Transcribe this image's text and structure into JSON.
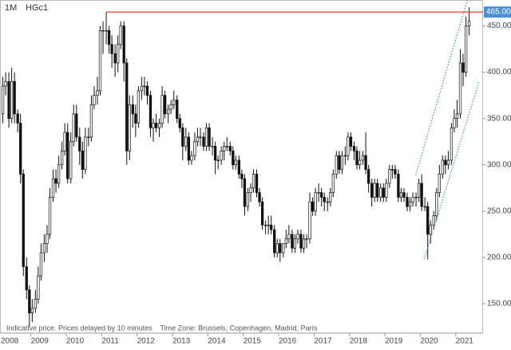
{
  "chart_data": {
    "type": "candlestick",
    "timeframe": "1M",
    "symbol": "HGc1",
    "note": "Indicative price. Prices delayed by 10 minutes    Time Zone: Brussels, Copenhagen, Madrid, Paris",
    "x": [
      2008.21,
      2008.29,
      2008.38,
      2008.46,
      2008.54,
      2008.63,
      2008.71,
      2008.79,
      2008.88,
      2008.96,
      2009.04,
      2009.13,
      2009.21,
      2009.29,
      2009.38,
      2009.46,
      2009.54,
      2009.63,
      2009.71,
      2009.79,
      2009.88,
      2009.96,
      2010.04,
      2010.13,
      2010.21,
      2010.29,
      2010.38,
      2010.46,
      2010.54,
      2010.63,
      2010.71,
      2010.79,
      2010.88,
      2010.96,
      2011.04,
      2011.13,
      2011.21,
      2011.29,
      2011.38,
      2011.46,
      2011.54,
      2011.63,
      2011.71,
      2011.79,
      2011.88,
      2011.96,
      2012.04,
      2012.13,
      2012.21,
      2012.29,
      2012.38,
      2012.46,
      2012.54,
      2012.63,
      2012.71,
      2012.79,
      2012.88,
      2012.96,
      2013.04,
      2013.13,
      2013.21,
      2013.29,
      2013.38,
      2013.46,
      2013.54,
      2013.63,
      2013.71,
      2013.79,
      2013.88,
      2013.96,
      2014.04,
      2014.13,
      2014.21,
      2014.29,
      2014.38,
      2014.46,
      2014.54,
      2014.63,
      2014.71,
      2014.79,
      2014.88,
      2014.96,
      2015.04,
      2015.13,
      2015.21,
      2015.29,
      2015.38,
      2015.46,
      2015.54,
      2015.63,
      2015.71,
      2015.79,
      2015.88,
      2015.96,
      2016.04,
      2016.13,
      2016.21,
      2016.29,
      2016.38,
      2016.46,
      2016.54,
      2016.63,
      2016.71,
      2016.79,
      2016.88,
      2016.96,
      2017.04,
      2017.13,
      2017.21,
      2017.29,
      2017.38,
      2017.46,
      2017.54,
      2017.63,
      2017.71,
      2017.79,
      2017.88,
      2017.96,
      2018.04,
      2018.13,
      2018.21,
      2018.29,
      2018.38,
      2018.46,
      2018.54,
      2018.63,
      2018.71,
      2018.79,
      2018.88,
      2018.96,
      2019.04,
      2019.13,
      2019.21,
      2019.29,
      2019.38,
      2019.46,
      2019.54,
      2019.63,
      2019.71,
      2019.79,
      2019.88,
      2019.96,
      2020.04,
      2020.13,
      2020.21,
      2020.29,
      2020.38,
      2020.46,
      2020.54,
      2020.63,
      2020.71,
      2020.79,
      2020.88,
      2020.96,
      2021.04,
      2021.13,
      2021.21,
      2021.29,
      2021.38
    ],
    "open": [
      355,
      385,
      390,
      350,
      390,
      355,
      345,
      290,
      190,
      165,
      140,
      145,
      155,
      180,
      205,
      215,
      225,
      265,
      285,
      280,
      300,
      315,
      335,
      285,
      325,
      355,
      330,
      315,
      295,
      330,
      330,
      365,
      375,
      380,
      445,
      445,
      445,
      430,
      420,
      410,
      430,
      450,
      410,
      315,
      365,
      355,
      345,
      380,
      385,
      385,
      375,
      340,
      345,
      340,
      345,
      375,
      355,
      360,
      365,
      370,
      350,
      340,
      320,
      330,
      305,
      310,
      325,
      330,
      330,
      320,
      340,
      320,
      320,
      305,
      305,
      315,
      320,
      320,
      315,
      300,
      305,
      290,
      285,
      255,
      270,
      275,
      290,
      270,
      260,
      235,
      235,
      235,
      230,
      205,
      215,
      205,
      215,
      220,
      225,
      210,
      220,
      225,
      210,
      220,
      220,
      260,
      250,
      270,
      270,
      265,
      260,
      260,
      270,
      290,
      310,
      295,
      310,
      310,
      330,
      320,
      315,
      300,
      305,
      310,
      295,
      280,
      265,
      280,
      265,
      275,
      265,
      280,
      295,
      295,
      290,
      265,
      270,
      265,
      255,
      260,
      265,
      265,
      280,
      255,
      255,
      225,
      235,
      245,
      270,
      290,
      305,
      300,
      305,
      340,
      350,
      355,
      410,
      400,
      450
    ],
    "high": [
      395,
      400,
      400,
      405,
      400,
      360,
      355,
      295,
      200,
      170,
      155,
      165,
      190,
      215,
      225,
      235,
      275,
      295,
      295,
      310,
      325,
      345,
      345,
      335,
      365,
      365,
      340,
      325,
      340,
      340,
      375,
      385,
      395,
      450,
      455,
      465,
      450,
      440,
      430,
      440,
      455,
      455,
      415,
      375,
      375,
      365,
      385,
      395,
      395,
      390,
      380,
      350,
      355,
      350,
      385,
      380,
      365,
      370,
      380,
      375,
      355,
      345,
      340,
      335,
      315,
      335,
      340,
      340,
      335,
      345,
      345,
      330,
      325,
      310,
      320,
      325,
      330,
      325,
      320,
      310,
      310,
      295,
      290,
      275,
      280,
      295,
      295,
      275,
      265,
      240,
      245,
      245,
      235,
      220,
      220,
      215,
      230,
      235,
      230,
      225,
      230,
      230,
      225,
      225,
      270,
      265,
      275,
      280,
      275,
      270,
      265,
      275,
      295,
      315,
      315,
      315,
      320,
      335,
      335,
      325,
      320,
      315,
      315,
      335,
      300,
      285,
      285,
      285,
      280,
      280,
      285,
      300,
      300,
      300,
      295,
      275,
      275,
      270,
      265,
      270,
      270,
      285,
      290,
      265,
      260,
      240,
      250,
      275,
      300,
      310,
      310,
      315,
      345,
      360,
      370,
      425,
      420,
      460,
      470
    ],
    "low": [
      345,
      375,
      340,
      345,
      345,
      335,
      280,
      180,
      155,
      125,
      130,
      140,
      150,
      175,
      195,
      205,
      220,
      260,
      270,
      275,
      295,
      310,
      280,
      280,
      320,
      325,
      300,
      285,
      290,
      320,
      325,
      360,
      365,
      375,
      420,
      430,
      420,
      405,
      395,
      400,
      425,
      390,
      300,
      305,
      340,
      330,
      340,
      370,
      375,
      365,
      330,
      325,
      335,
      330,
      340,
      350,
      345,
      355,
      360,
      345,
      335,
      305,
      315,
      300,
      300,
      305,
      320,
      320,
      315,
      315,
      315,
      310,
      290,
      295,
      300,
      305,
      315,
      310,
      295,
      295,
      285,
      275,
      245,
      250,
      260,
      270,
      265,
      255,
      230,
      225,
      225,
      225,
      200,
      200,
      195,
      200,
      210,
      215,
      205,
      205,
      215,
      205,
      205,
      210,
      215,
      245,
      245,
      260,
      255,
      250,
      250,
      255,
      265,
      285,
      290,
      290,
      300,
      305,
      315,
      305,
      295,
      295,
      300,
      290,
      270,
      255,
      260,
      260,
      260,
      260,
      260,
      275,
      285,
      285,
      260,
      260,
      260,
      250,
      250,
      255,
      255,
      260,
      250,
      250,
      198,
      215,
      230,
      240,
      265,
      285,
      290,
      295,
      300,
      335,
      340,
      350,
      385,
      395,
      440
    ],
    "close": [
      385,
      390,
      350,
      390,
      355,
      345,
      290,
      190,
      165,
      140,
      145,
      155,
      180,
      205,
      215,
      225,
      265,
      285,
      280,
      300,
      315,
      335,
      285,
      325,
      355,
      330,
      315,
      295,
      330,
      330,
      365,
      375,
      380,
      445,
      445,
      445,
      430,
      420,
      410,
      430,
      450,
      410,
      315,
      365,
      355,
      345,
      380,
      385,
      385,
      375,
      340,
      345,
      340,
      345,
      375,
      355,
      360,
      365,
      370,
      350,
      340,
      320,
      330,
      305,
      310,
      325,
      330,
      330,
      320,
      340,
      320,
      320,
      305,
      305,
      315,
      320,
      320,
      315,
      300,
      305,
      290,
      285,
      255,
      270,
      275,
      290,
      270,
      260,
      235,
      235,
      235,
      230,
      205,
      215,
      205,
      215,
      220,
      225,
      210,
      220,
      225,
      210,
      220,
      220,
      260,
      250,
      270,
      270,
      265,
      260,
      260,
      270,
      290,
      310,
      295,
      310,
      310,
      330,
      320,
      315,
      300,
      305,
      310,
      295,
      280,
      265,
      280,
      265,
      275,
      265,
      280,
      295,
      295,
      290,
      265,
      270,
      265,
      255,
      260,
      265,
      265,
      280,
      255,
      255,
      225,
      235,
      245,
      270,
      290,
      305,
      300,
      305,
      340,
      350,
      355,
      410,
      400,
      450,
      455
    ],
    "up_color": "#ffffff",
    "down_color": "#111111",
    "wick_color": "#111111",
    "xlim": [
      2008.13,
      2021.66
    ],
    "xticks": [
      2008,
      2009,
      2010,
      2011,
      2012,
      2013,
      2014,
      2015,
      2016,
      2017,
      2018,
      2019,
      2020,
      2021
    ],
    "ylim": [
      125,
      478
    ],
    "yticks": [
      {
        "value": 150,
        "label": "150.00"
      },
      {
        "value": 200,
        "label": "200.00"
      },
      {
        "value": 250,
        "label": "250.00"
      },
      {
        "value": 300,
        "label": "300.00"
      },
      {
        "value": 350,
        "label": "350.00"
      },
      {
        "value": 400,
        "label": "400.00"
      },
      {
        "value": 450,
        "label": "450.00"
      }
    ],
    "hline": {
      "value": 465,
      "label": "465.00",
      "from_x": 2011.13,
      "color": "#e53935",
      "label_fill": "#4a90d9"
    },
    "trendlines": [
      {
        "x": [
          2019.87,
          2021.33
        ],
        "y": [
          289,
          478
        ],
        "color": "#3b8fe0"
      },
      {
        "x": [
          2020.11,
          2021.66
        ],
        "y": [
          198,
          390
        ],
        "color": "#3b8fe0"
      }
    ]
  }
}
